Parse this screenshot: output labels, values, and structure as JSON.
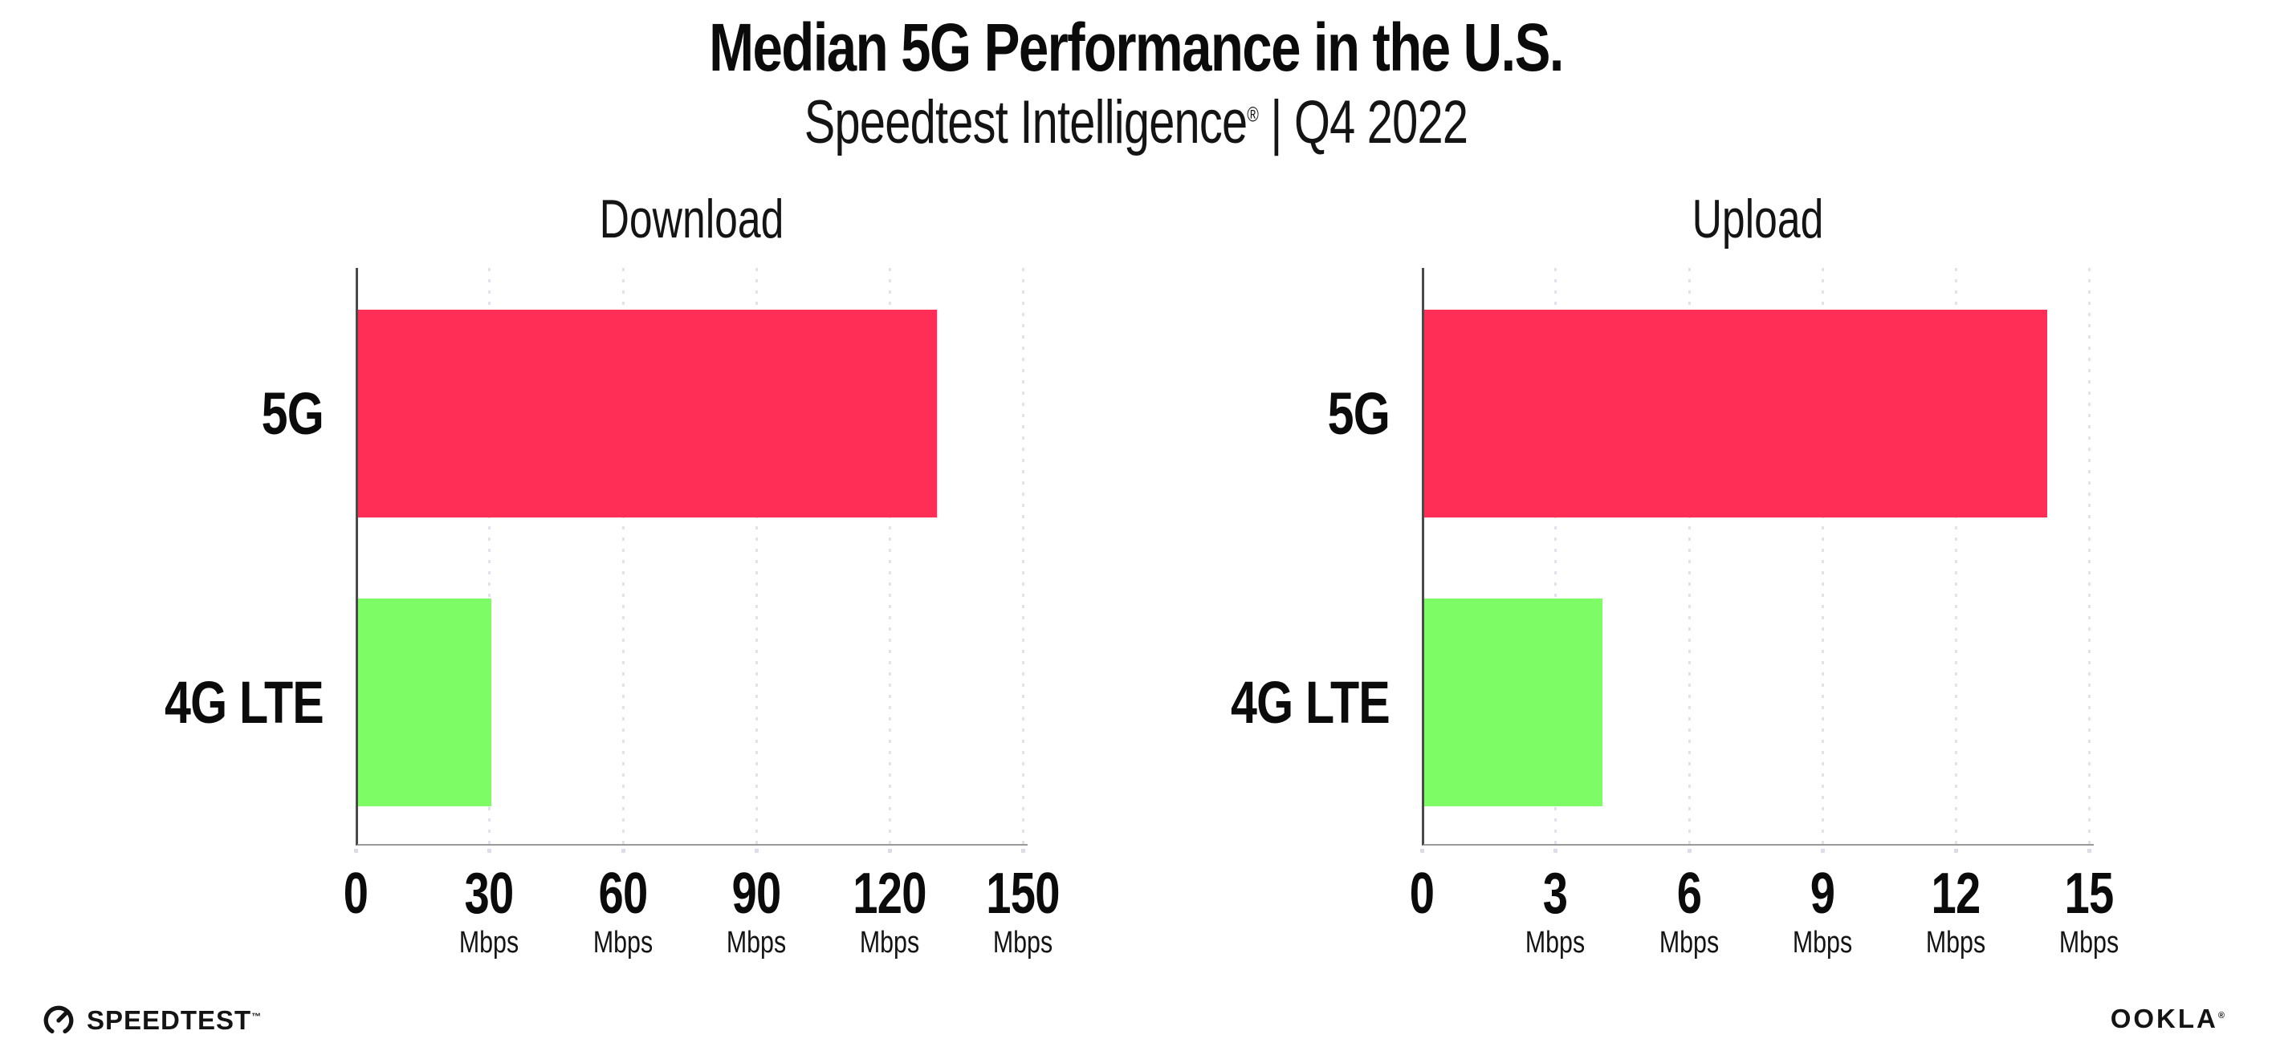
{
  "header": {
    "title": "Median 5G Performance in the U.S.",
    "subtitle": {
      "product": "Speedtest Intelligence",
      "reg_mark": "®",
      "separator": "|",
      "period": "Q4 2022"
    }
  },
  "chart_data": [
    {
      "type": "bar",
      "orientation": "horizontal",
      "title": "Download",
      "categories": [
        "5G",
        "4G LTE"
      ],
      "values": [
        130,
        30
      ],
      "unit": "Mbps",
      "xlim": [
        0,
        151
      ],
      "xticks": [
        0,
        30,
        60,
        90,
        120,
        150
      ],
      "xtick_unit": "Mbps",
      "bar_colors": [
        "#FF2E56",
        "#7DFC66"
      ],
      "grid": "dotted-vertical",
      "legend": "none"
    },
    {
      "type": "bar",
      "orientation": "horizontal",
      "title": "Upload",
      "categories": [
        "5G",
        "4G LTE"
      ],
      "values": [
        14,
        4
      ],
      "unit": "Mbps",
      "xlim": [
        0,
        15.1
      ],
      "xticks": [
        0,
        3,
        6,
        9,
        12,
        15
      ],
      "xtick_unit": "Mbps",
      "bar_colors": [
        "#FF2E56",
        "#7DFC66"
      ],
      "grid": "dotted-vertical",
      "legend": "none"
    }
  ],
  "footer": {
    "speedtest_label": "SPEEDTEST",
    "speedtest_mark": "™",
    "ookla_label": "OOKLA",
    "ookla_mark": "®"
  },
  "colors": {
    "bar_5g": "#FF2E56",
    "bar_4g_lte": "#7DFC66",
    "gridline_dots": "#E2E1ED",
    "left_axis": "#4A4A4A",
    "bottom_axis": "#9A9A9A",
    "text": "#0B0B0B"
  }
}
